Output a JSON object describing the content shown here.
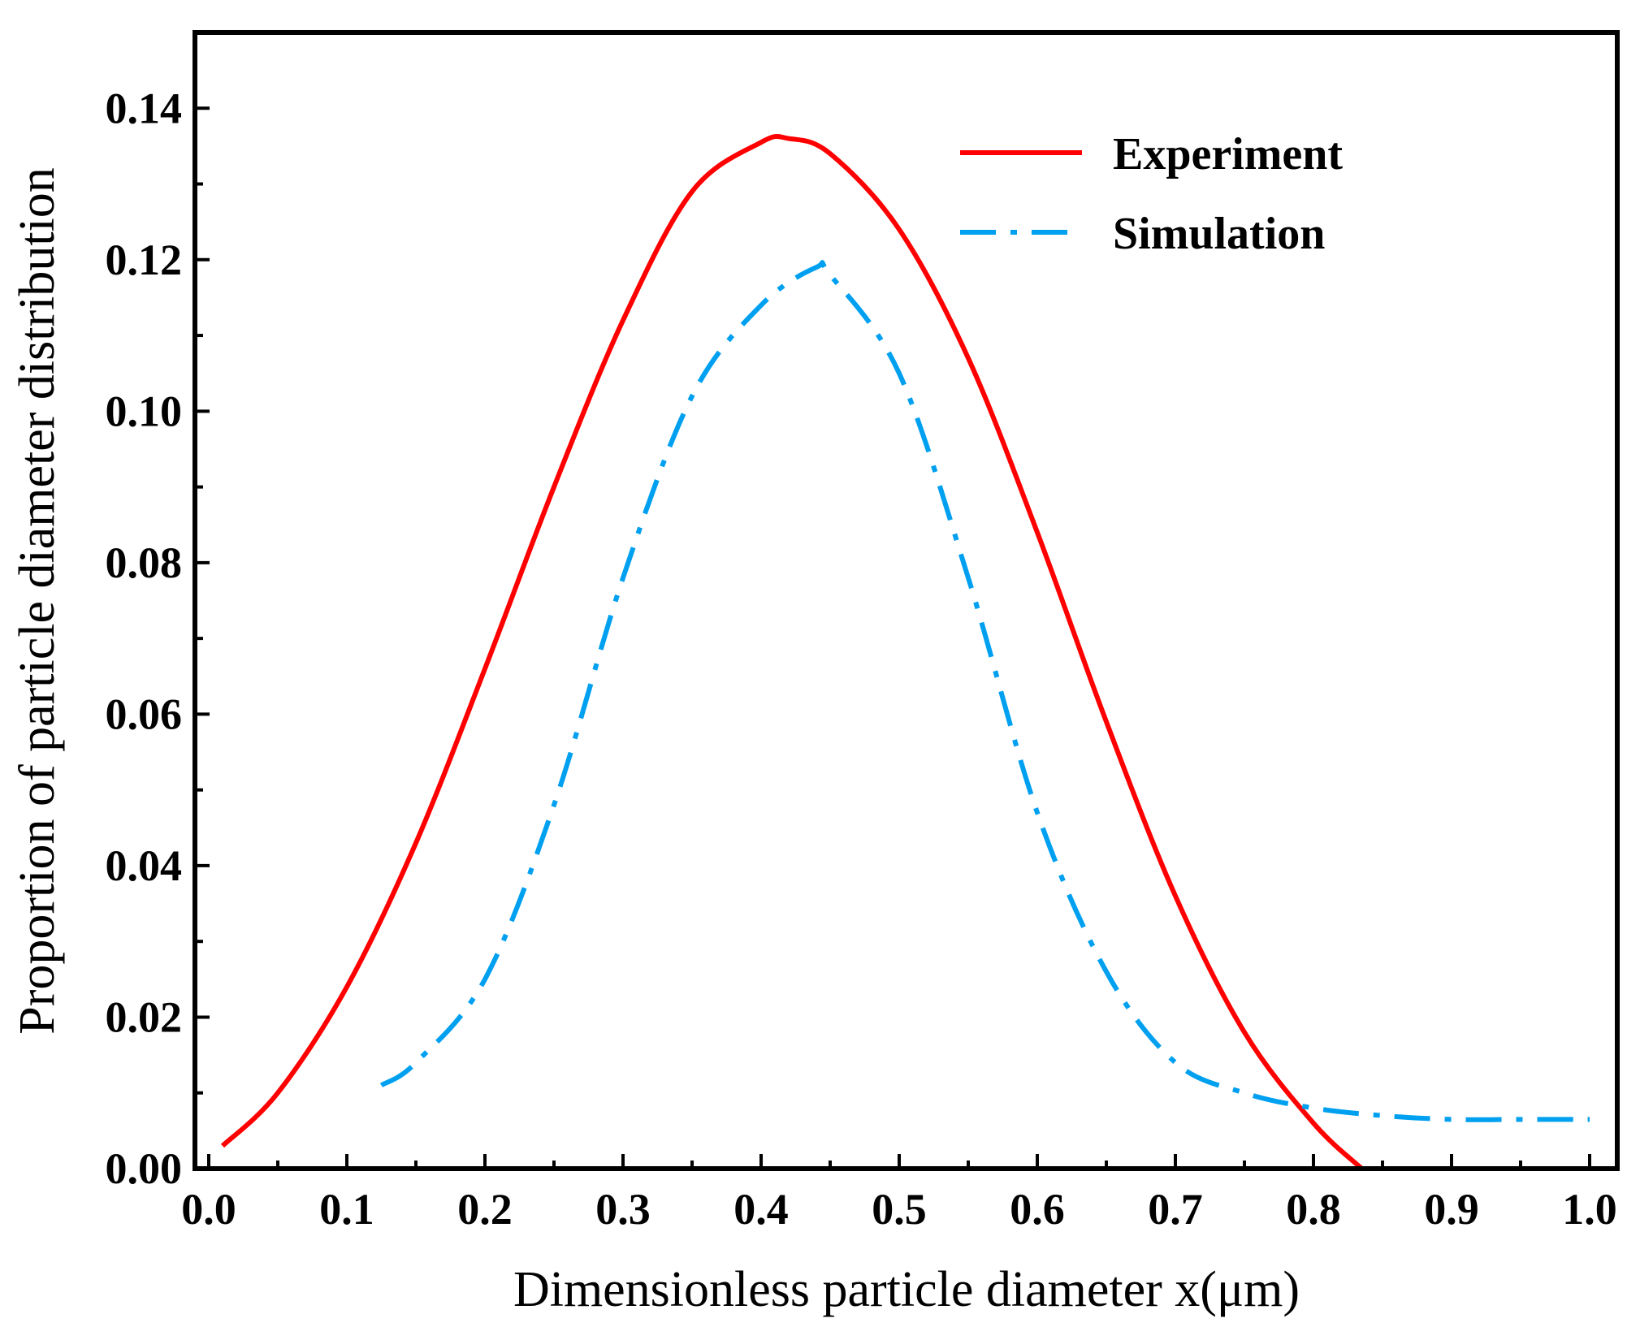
{
  "chart_data": {
    "type": "line",
    "title": "",
    "xlabel": "Dimensionless particle diameter x(μm)",
    "ylabel": "Proportion of particle diameter distribution",
    "xlim": [
      -0.01,
      1.02
    ],
    "ylim": [
      0.0,
      0.15
    ],
    "xticks": [
      0.0,
      0.1,
      0.2,
      0.3,
      0.4,
      0.5,
      0.6,
      0.7,
      0.8,
      0.9,
      1.0
    ],
    "xtick_labels": [
      "0.0",
      "0.1",
      "0.2",
      "0.3",
      "0.4",
      "0.5",
      "0.6",
      "0.7",
      "0.8",
      "0.9",
      "1.0"
    ],
    "yticks": [
      0.0,
      0.02,
      0.04,
      0.06,
      0.08,
      0.1,
      0.12,
      0.14
    ],
    "ytick_labels": [
      "0.00",
      "0.02",
      "0.04",
      "0.06",
      "0.08",
      "0.10",
      "0.12",
      "0.14"
    ],
    "grid": false,
    "legend_position": "top-right",
    "series": [
      {
        "name": "Experiment",
        "color": "#ff0000",
        "style": "solid",
        "x": [
          0.01,
          0.05,
          0.1,
          0.15,
          0.2,
          0.25,
          0.3,
          0.35,
          0.4,
          0.42,
          0.45,
          0.5,
          0.55,
          0.6,
          0.65,
          0.7,
          0.75,
          0.8,
          0.835
        ],
        "y": [
          0.003,
          0.01,
          0.024,
          0.043,
          0.066,
          0.09,
          0.112,
          0.129,
          0.1355,
          0.136,
          0.134,
          0.124,
          0.107,
          0.084,
          0.059,
          0.036,
          0.018,
          0.006,
          0.0
        ]
      },
      {
        "name": "Simulation",
        "color": "#00a0f0",
        "style": "dashdot",
        "x": [
          0.125,
          0.15,
          0.2,
          0.25,
          0.3,
          0.35,
          0.4,
          0.44,
          0.45,
          0.5,
          0.55,
          0.6,
          0.65,
          0.7,
          0.75,
          0.8,
          0.85,
          0.9,
          0.95,
          1.0
        ],
        "y": [
          0.011,
          0.014,
          0.025,
          0.048,
          0.078,
          0.102,
          0.114,
          0.119,
          0.118,
          0.105,
          0.078,
          0.047,
          0.026,
          0.014,
          0.01,
          0.008,
          0.007,
          0.0065,
          0.0065,
          0.0065
        ]
      }
    ]
  }
}
